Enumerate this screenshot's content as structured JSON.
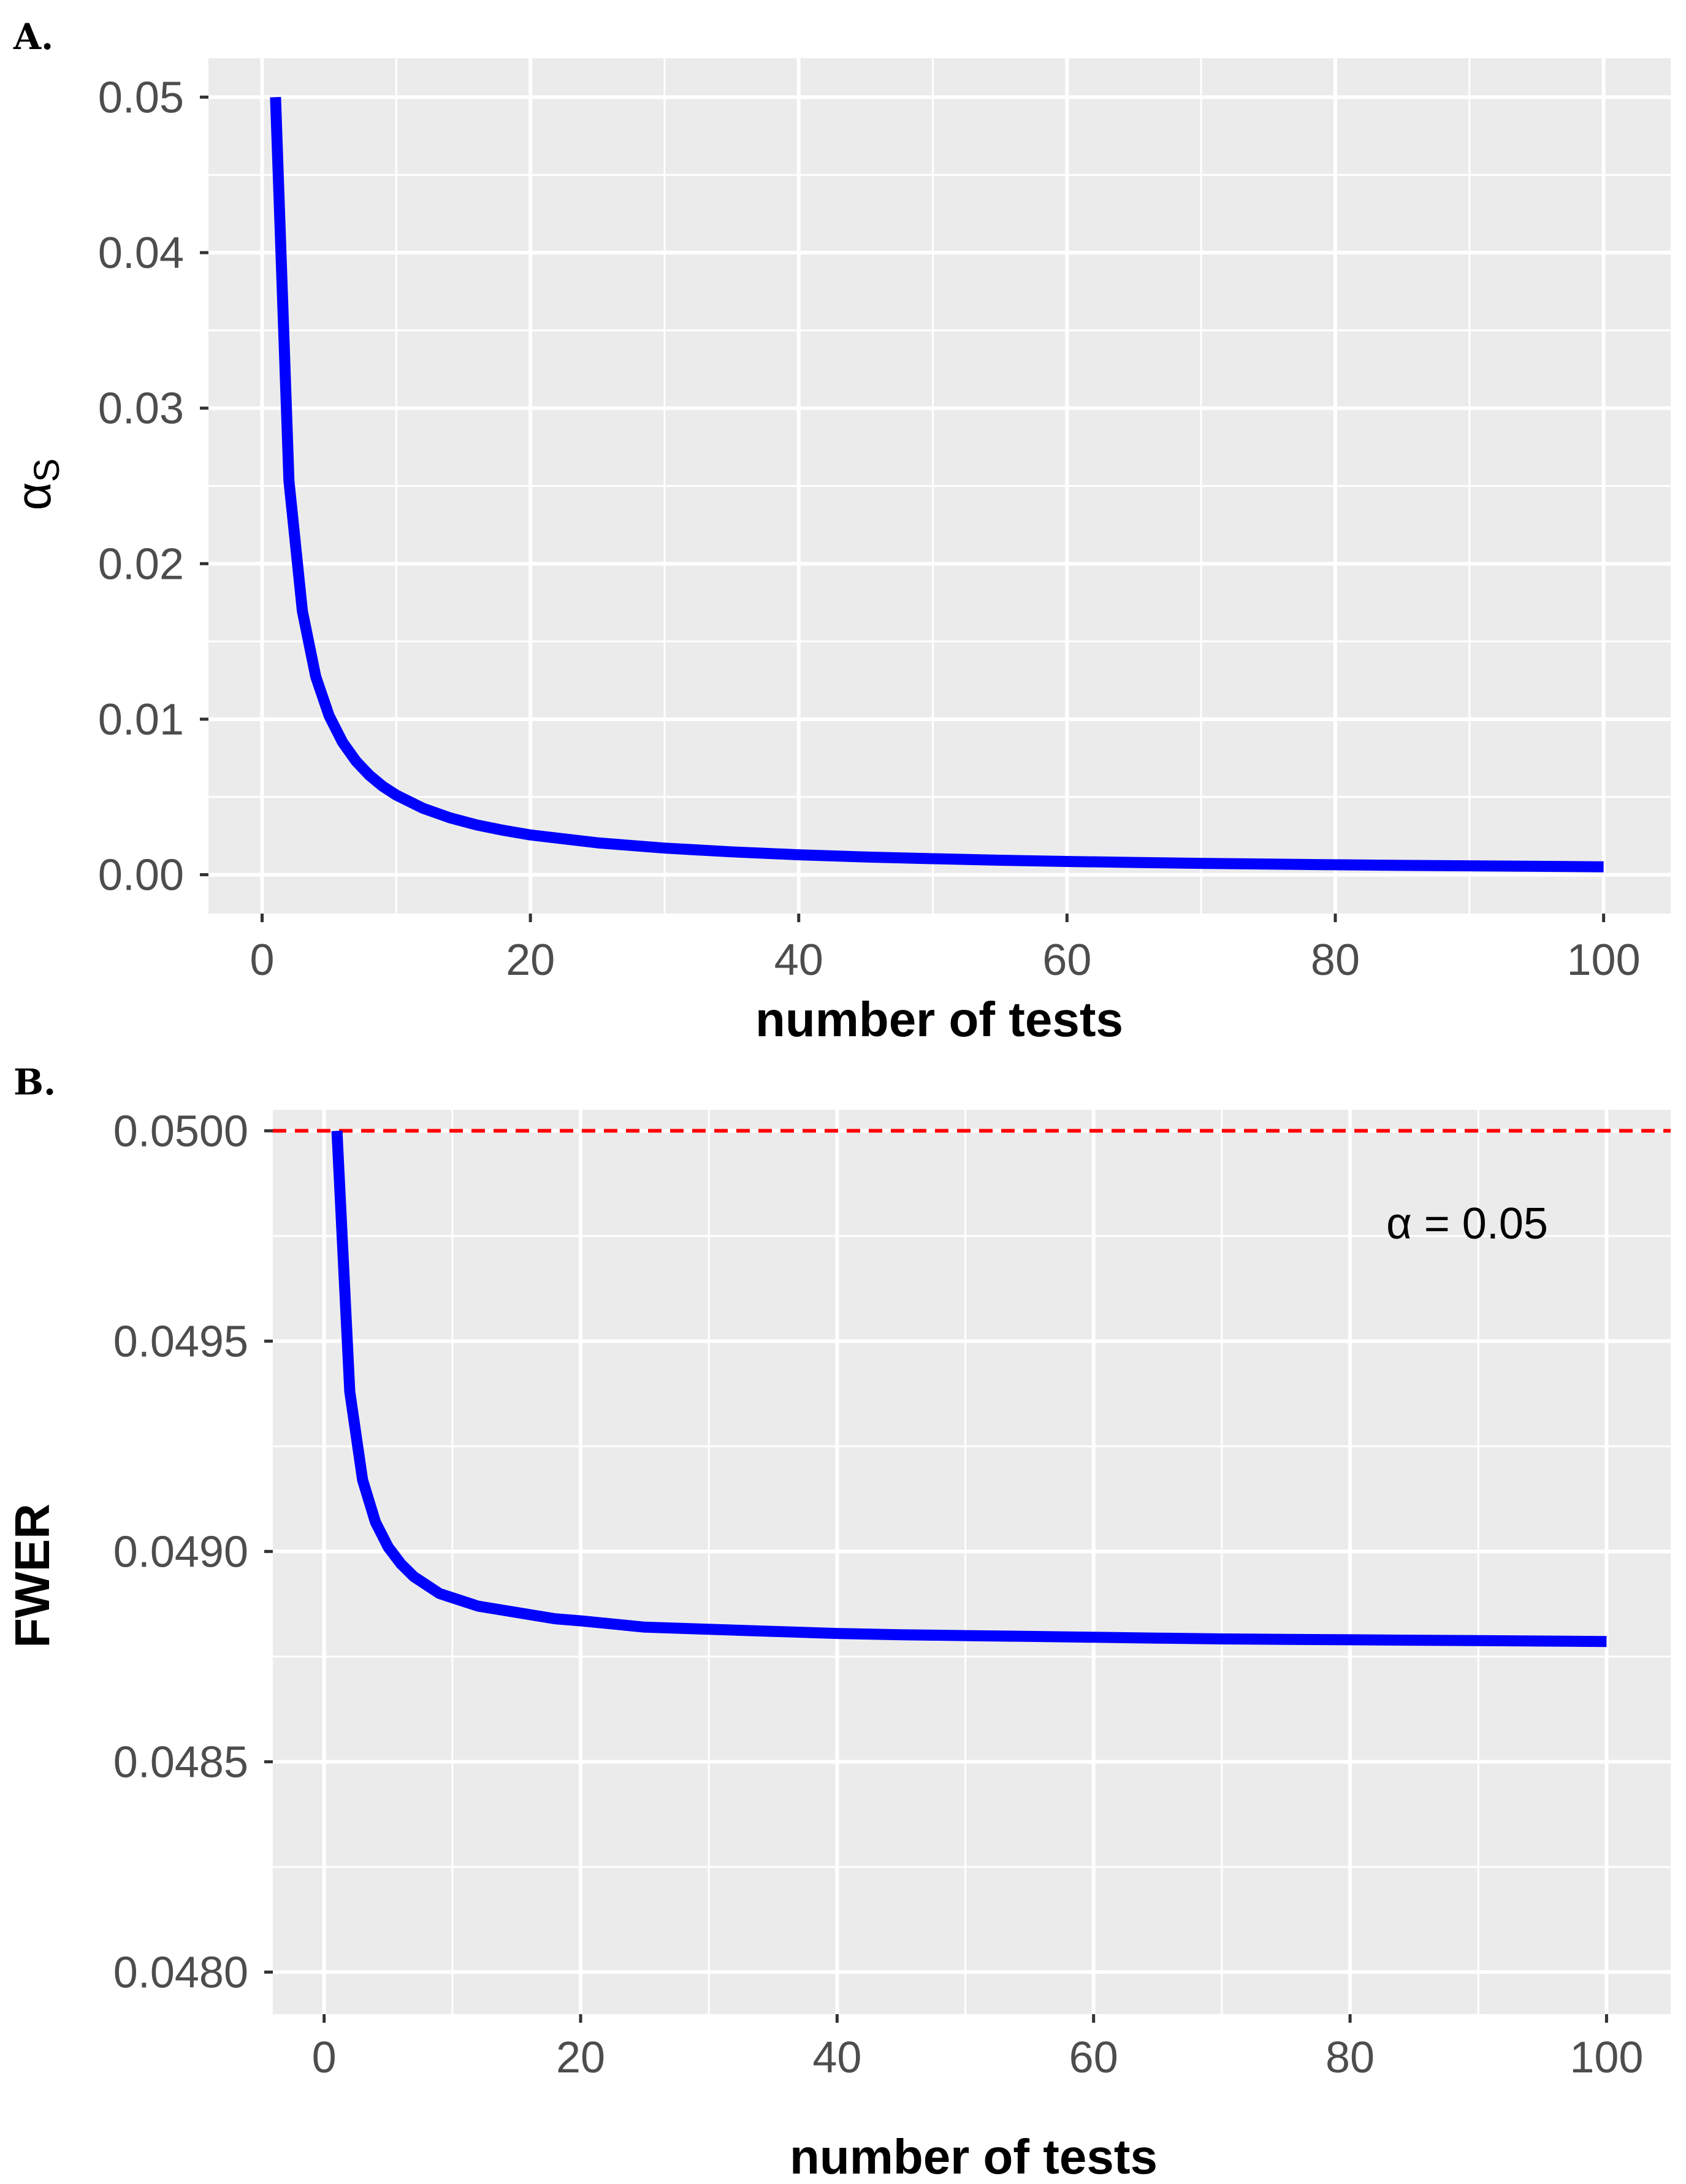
{
  "chart_data": [
    {
      "panel": "A.",
      "type": "line",
      "xlabel": "number of tests",
      "ylabel_symbol": "α",
      "ylabel_subscript": "S",
      "xlim": [
        -4,
        105
      ],
      "ylim": [
        -0.0025,
        0.0525
      ],
      "x_ticks": [
        0,
        20,
        40,
        60,
        80,
        100
      ],
      "y_ticks": [
        0.0,
        0.01,
        0.02,
        0.03,
        0.04,
        0.05
      ],
      "x_tick_labels": [
        "0",
        "20",
        "40",
        "60",
        "80",
        "100"
      ],
      "y_tick_labels": [
        "0.00",
        "0.01",
        "0.02",
        "0.03",
        "0.04",
        "0.05"
      ],
      "grid": true,
      "series": [
        {
          "color": "#0000ff",
          "x": [
            1,
            2,
            3,
            4,
            5,
            6,
            7,
            8,
            9,
            10,
            12,
            14,
            16,
            18,
            20,
            25,
            30,
            35,
            40,
            45,
            50,
            55,
            60,
            65,
            70,
            75,
            80,
            85,
            90,
            95,
            100
          ],
          "y": [
            0.05,
            0.02532,
            0.01695,
            0.01274,
            0.01021,
            0.00851,
            0.0073,
            0.00639,
            0.00568,
            0.00512,
            0.00427,
            0.00366,
            0.0032,
            0.00285,
            0.00256,
            0.00205,
            0.00171,
            0.00147,
            0.00128,
            0.00114,
            0.00103,
            0.00093,
            0.00085,
            0.00079,
            0.00073,
            0.00068,
            0.00064,
            0.0006,
            0.00057,
            0.00054,
            0.00051
          ]
        }
      ]
    },
    {
      "panel": "B.",
      "type": "line",
      "xlabel": "number of tests",
      "ylabel": "FWER",
      "xlim": [
        -4,
        105
      ],
      "ylim": [
        0.0479,
        0.05005
      ],
      "x_ticks": [
        0,
        20,
        40,
        60,
        80,
        100
      ],
      "y_ticks": [
        0.048,
        0.0485,
        0.049,
        0.0495,
        0.05
      ],
      "x_tick_labels": [
        "0",
        "20",
        "40",
        "60",
        "80",
        "100"
      ],
      "y_tick_labels": [
        "0.0480",
        "0.0485",
        "0.0490",
        "0.0495",
        "0.0500"
      ],
      "grid": true,
      "reference_line": {
        "y": 0.05,
        "color": "#ff0000",
        "style": "dashed"
      },
      "annotation": {
        "text": "α = 0.05",
        "x": 94,
        "y": 0.04978
      },
      "series": [
        {
          "color": "#0000ff",
          "x": [
            1,
            2,
            3,
            4,
            5,
            6,
            7,
            8,
            9,
            10,
            12,
            14,
            16,
            18,
            20,
            25,
            30,
            35,
            40,
            45,
            50,
            55,
            60,
            65,
            70,
            75,
            80,
            85,
            90,
            95,
            100
          ],
          "y": [
            0.05,
            0.04938,
            0.04917,
            0.04907,
            0.04901,
            0.04897,
            0.04894,
            0.04892,
            0.0489,
            0.04889,
            0.04887,
            0.04886,
            0.04885,
            0.04884,
            0.048835,
            0.04882,
            0.048815,
            0.04881,
            0.048805,
            0.048802,
            0.0488,
            0.048798,
            0.048796,
            0.048794,
            0.048792,
            0.048791,
            0.04879,
            0.048789,
            0.048788,
            0.048787,
            0.048786
          ]
        }
      ]
    }
  ]
}
